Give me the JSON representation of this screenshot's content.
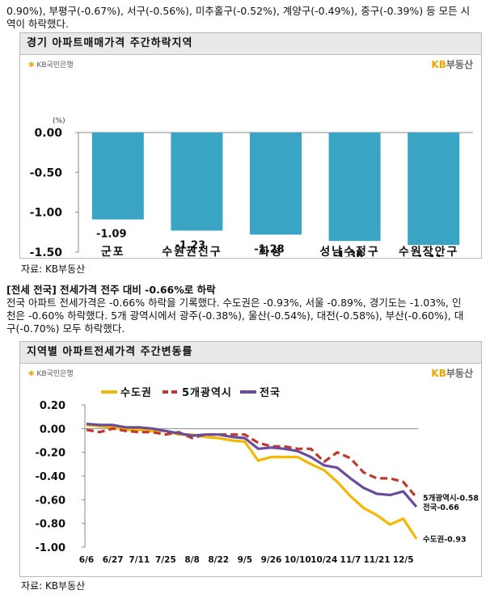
{
  "top_text": {
    "line1": "0.90%), 부평구(-0.67%), 서구(-0.56%), 미추홀구(-0.52%), 계양구(-0.49%), 중구(-0.39%) 등 모든 시",
    "line2": "역이 하락했다."
  },
  "chart1": {
    "header": "경기 아파트매매가격 주간하락지역",
    "logo_left": "KB국민은행",
    "logo_right_kb": "KB",
    "logo_right_text": "부동산",
    "source": "자료: KB부동산",
    "chart_data": {
      "type": "bar",
      "ylabel": "(%)",
      "ylim": [
        -1.5,
        0
      ],
      "yticks": [
        "0.00",
        "-0.50",
        "-1.00",
        "-1.50"
      ],
      "categories": [
        "군포",
        "수원권선구",
        "화성",
        "성남수정구",
        "수원장안구"
      ],
      "values": [
        -1.09,
        -1.23,
        -1.28,
        -1.36,
        -1.41
      ],
      "labels": [
        "-1.09",
        "-1.23",
        "-1.28",
        "-1.36",
        "-1.41"
      ],
      "color": "#3aa4c4"
    }
  },
  "section2": {
    "heading": "[전세 전국] 전세가격 전주 대비 -0.66%로 하락",
    "line1": "전국 아파트 전세가격은 -0.66% 하락을 기록했다. 수도권은 -0.93%, 서울 -0.89%, 경기도는 -1.03%, 인",
    "line2": "천은 -0.60% 하락했다. 5개 광역시에서 광주(-0.38%), 울산(-0.54%), 대전(-0.58%), 부산(-0.60%), 대",
    "line3": "구(-0.70%) 모두 하락했다."
  },
  "chart2": {
    "header": "지역별 아파트전세가격 주간변동률",
    "logo_left": "KB국민은행",
    "logo_right_kb": "KB",
    "logo_right_text": "부동산",
    "source": "자료: KB부동산",
    "chart_data": {
      "type": "line",
      "ylim": [
        -1.0,
        0.2
      ],
      "yticks": [
        "0.20",
        "0.00",
        "-0.20",
        "-0.40",
        "-0.60",
        "-0.80",
        "-1.00"
      ],
      "xticks": [
        "6/6",
        "6/27",
        "7/11",
        "7/25",
        "8/8",
        "8/22",
        "9/5",
        "9/26",
        "10/10",
        "10/24",
        "11/7",
        "11/21",
        "12/5"
      ],
      "legend_position": "top",
      "series": [
        {
          "name": "수도권",
          "color": "#f5b800",
          "dash": false,
          "values": [
            0.03,
            0.02,
            0.01,
            -0.01,
            -0.01,
            -0.02,
            -0.02,
            -0.05,
            -0.05,
            -0.07,
            -0.08,
            -0.1,
            -0.11,
            -0.27,
            -0.24,
            -0.24,
            -0.24,
            -0.3,
            -0.35,
            -0.45,
            -0.57,
            -0.67,
            -0.73,
            -0.81,
            -0.76,
            -0.93
          ],
          "end_label": "수도권-0.93"
        },
        {
          "name": "5개광역시",
          "color": "#c0392b",
          "dash": true,
          "values": [
            -0.01,
            -0.03,
            0.0,
            -0.02,
            -0.03,
            -0.03,
            -0.05,
            -0.03,
            -0.08,
            -0.05,
            -0.05,
            -0.05,
            -0.05,
            -0.12,
            -0.15,
            -0.15,
            -0.17,
            -0.17,
            -0.28,
            -0.2,
            -0.25,
            -0.37,
            -0.42,
            -0.42,
            -0.45,
            -0.58
          ],
          "end_label": "5개광역시-0.58"
        },
        {
          "name": "전국",
          "color": "#6a4c9c",
          "dash": false,
          "values": [
            0.04,
            0.03,
            0.03,
            0.01,
            0.01,
            0.0,
            -0.02,
            -0.04,
            -0.06,
            -0.05,
            -0.05,
            -0.07,
            -0.08,
            -0.17,
            -0.16,
            -0.17,
            -0.19,
            -0.24,
            -0.31,
            -0.33,
            -0.42,
            -0.5,
            -0.55,
            -0.56,
            -0.53,
            -0.66
          ],
          "end_label": "전국-0.66"
        }
      ]
    }
  }
}
